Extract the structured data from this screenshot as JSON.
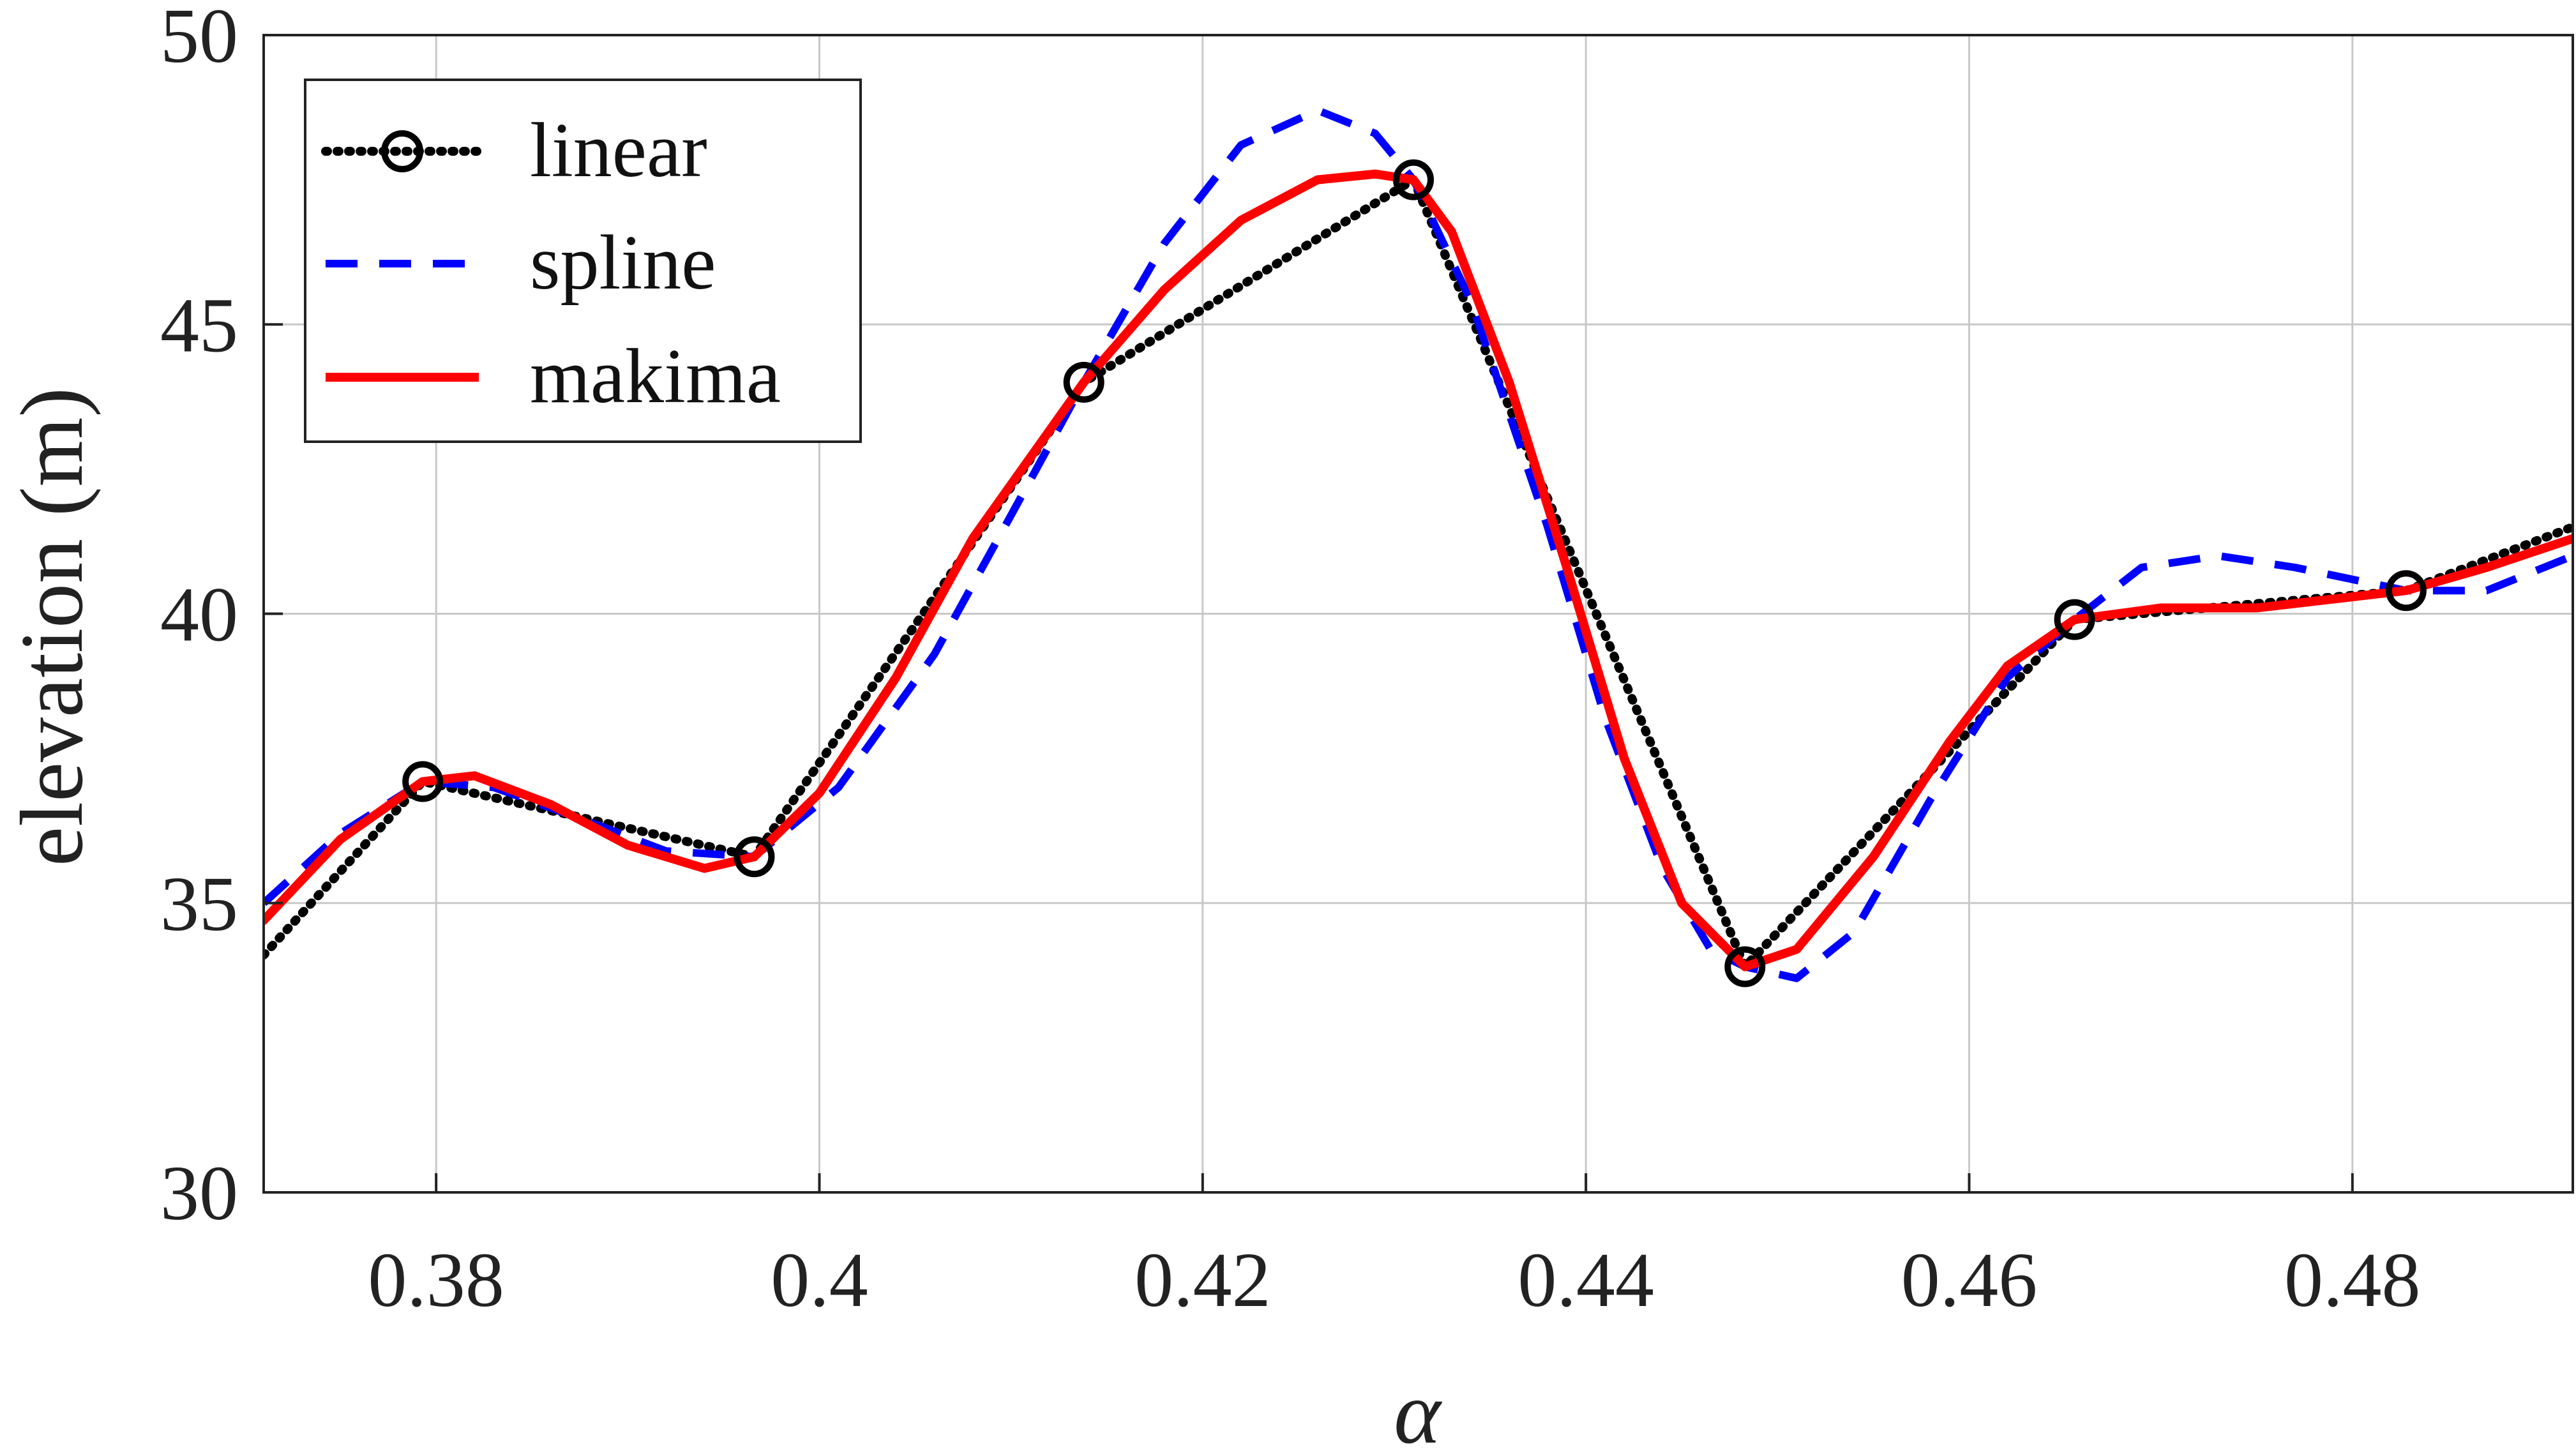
{
  "chart_data": {
    "type": "line",
    "title": "",
    "xlabel": "α",
    "ylabel": "elevation (m)",
    "xlim": [
      0.371,
      0.4915
    ],
    "ylim": [
      30,
      50
    ],
    "grid": true,
    "legend_position": "top-left",
    "x_ticks": [
      0.38,
      0.4,
      0.42,
      0.44,
      0.46,
      0.48
    ],
    "x_tick_labels": [
      "0.38",
      "0.4",
      "0.42",
      "0.44",
      "0.46",
      "0.48"
    ],
    "y_ticks": [
      30,
      35,
      40,
      45,
      50
    ],
    "y_tick_labels": [
      "30",
      "35",
      "40",
      "45",
      "50"
    ],
    "x": [
      0.3793,
      0.3966,
      0.4138,
      0.431,
      0.4483,
      0.4655,
      0.4828
    ],
    "series": [
      {
        "name": "linear",
        "style": "dotted",
        "color": "#000000",
        "markers": true,
        "values": [
          37.1,
          35.8,
          44.0,
          47.5,
          33.9,
          39.9,
          40.4
        ],
        "extrapolated": [
          [
            0.371,
            34.1
          ],
          [
            0.4915,
            41.5
          ]
        ]
      },
      {
        "name": "spline",
        "style": "dashed",
        "color": "#0000ff",
        "markers": false,
        "values": [
          37.1,
          35.8,
          44.0,
          47.5,
          33.9,
          39.9,
          40.4
        ],
        "path": [
          [
            0.371,
            35.0
          ],
          [
            0.375,
            36.2
          ],
          [
            0.3793,
            37.1
          ],
          [
            0.383,
            37.0
          ],
          [
            0.388,
            36.4
          ],
          [
            0.392,
            35.9
          ],
          [
            0.3966,
            35.8
          ],
          [
            0.401,
            37.0
          ],
          [
            0.406,
            39.3
          ],
          [
            0.41,
            41.7
          ],
          [
            0.4138,
            44.0
          ],
          [
            0.418,
            46.4
          ],
          [
            0.422,
            48.1
          ],
          [
            0.426,
            48.7
          ],
          [
            0.429,
            48.3
          ],
          [
            0.431,
            47.5
          ],
          [
            0.434,
            45.4
          ],
          [
            0.438,
            41.5
          ],
          [
            0.441,
            38.2
          ],
          [
            0.444,
            35.6
          ],
          [
            0.4465,
            34.2
          ],
          [
            0.4483,
            33.9
          ],
          [
            0.451,
            33.7
          ],
          [
            0.454,
            34.5
          ],
          [
            0.458,
            36.8
          ],
          [
            0.462,
            38.9
          ],
          [
            0.4655,
            39.9
          ],
          [
            0.469,
            40.8
          ],
          [
            0.473,
            41.0
          ],
          [
            0.477,
            40.8
          ],
          [
            0.4828,
            40.4
          ],
          [
            0.487,
            40.4
          ],
          [
            0.4915,
            41.0
          ]
        ]
      },
      {
        "name": "makima",
        "style": "solid",
        "color": "#ff0000",
        "markers": false,
        "values": [
          37.1,
          35.8,
          44.0,
          47.5,
          33.9,
          39.9,
          40.4
        ],
        "path": [
          [
            0.371,
            34.7
          ],
          [
            0.375,
            36.1
          ],
          [
            0.3793,
            37.1
          ],
          [
            0.382,
            37.2
          ],
          [
            0.386,
            36.7
          ],
          [
            0.39,
            36.0
          ],
          [
            0.394,
            35.6
          ],
          [
            0.3966,
            35.8
          ],
          [
            0.4,
            36.9
          ],
          [
            0.404,
            38.9
          ],
          [
            0.408,
            41.3
          ],
          [
            0.4138,
            44.0
          ],
          [
            0.418,
            45.6
          ],
          [
            0.422,
            46.8
          ],
          [
            0.426,
            47.5
          ],
          [
            0.429,
            47.6
          ],
          [
            0.431,
            47.5
          ],
          [
            0.433,
            46.6
          ],
          [
            0.436,
            44.0
          ],
          [
            0.439,
            40.8
          ],
          [
            0.442,
            37.5
          ],
          [
            0.445,
            35.0
          ],
          [
            0.4483,
            33.9
          ],
          [
            0.451,
            34.2
          ],
          [
            0.455,
            35.8
          ],
          [
            0.459,
            37.8
          ],
          [
            0.462,
            39.1
          ],
          [
            0.4655,
            39.9
          ],
          [
            0.47,
            40.1
          ],
          [
            0.475,
            40.1
          ],
          [
            0.4828,
            40.4
          ],
          [
            0.487,
            40.8
          ],
          [
            0.4915,
            41.3
          ]
        ]
      }
    ]
  }
}
